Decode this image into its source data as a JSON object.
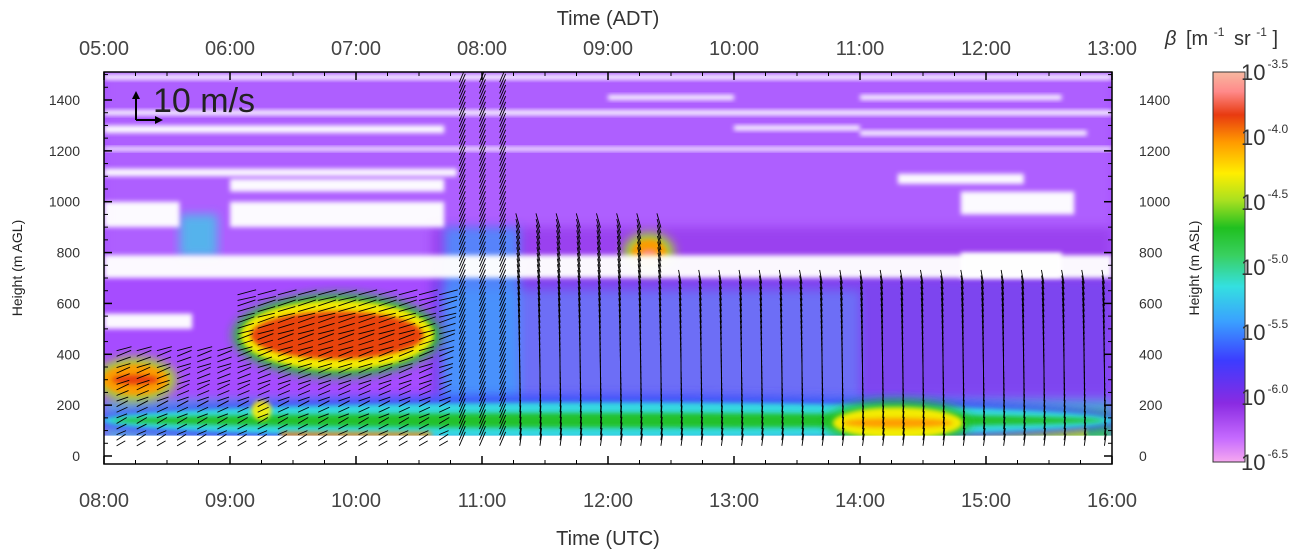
{
  "chart_data": {
    "type": "heatmap",
    "x_top_title": "Time (ADT)",
    "x_bottom_title": "Time (UTC)",
    "y_left_title": "Height (m AGL)",
    "y_right_title": "Height (m ASL)",
    "x_top_ticks": [
      "05:00",
      "06:00",
      "07:00",
      "08:00",
      "09:00",
      "10:00",
      "11:00",
      "12:00",
      "13:00"
    ],
    "x_bottom_ticks": [
      "08:00",
      "09:00",
      "10:00",
      "11:00",
      "12:00",
      "13:00",
      "14:00",
      "15:00",
      "16:00"
    ],
    "y_ticks": [
      "0",
      "200",
      "400",
      "600",
      "800",
      "1000",
      "1200",
      "1400"
    ],
    "y_range": [
      0,
      1500
    ],
    "x_range_utc_hours": [
      8,
      16
    ],
    "wind_scale_label": "10 m/s",
    "colorbar": {
      "title_beta": "β",
      "title_units": "[m",
      "title_exp1": "-1",
      "title_sr": "sr",
      "title_exp2": "-1",
      "title_close": "]",
      "base": "10",
      "exponents": [
        "-3.5",
        "-4.0",
        "-4.5",
        "-5.0",
        "-5.5",
        "-6.0",
        "-6.5"
      ],
      "range_log10": [
        -6.5,
        -3.5
      ]
    },
    "features": [
      {
        "name": "aerosol layer",
        "start_utc": 8.0,
        "end_utc": 8.5,
        "height_m": [
          250,
          350
        ],
        "log10_beta": -3.9
      },
      {
        "name": "aerosol layer",
        "start_utc": 9.1,
        "end_utc": 10.6,
        "height_m": [
          350,
          600
        ],
        "log10_beta": -4.0
      },
      {
        "name": "cloud",
        "start_utc": 12.2,
        "end_utc": 12.45,
        "height_m": [
          760,
          840
        ],
        "log10_beta": -3.8
      },
      {
        "name": "surface layer",
        "start_utc": 8.0,
        "end_utc": 16.0,
        "height_m": [
          80,
          200
        ],
        "log10_beta": -5.0
      },
      {
        "name": "surface maximum",
        "start_utc": 13.8,
        "end_utc": 14.8,
        "height_m": [
          80,
          180
        ],
        "log10_beta": -4.1
      }
    ]
  },
  "colors": {
    "ramp": [
      "#f6a8f0",
      "#c66bff",
      "#8a2be2",
      "#3c3cff",
      "#3aa0ff",
      "#34e0e0",
      "#39d060",
      "#20c020",
      "#a8e020",
      "#ffee00",
      "#ff9a00",
      "#e83a10",
      "#ff8a8a",
      "#f7b8a0"
    ],
    "background": "#ffffff"
  }
}
